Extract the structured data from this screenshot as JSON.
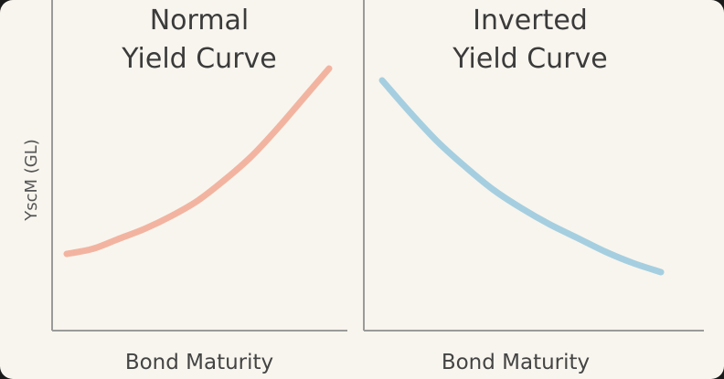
{
  "ylabel": "YscM (GL)",
  "chart_data": [
    {
      "type": "line",
      "title_line1": "Normal",
      "title_line2": "Yield Curve",
      "xlabel": "Bond Maturity",
      "ylabel": "YscM (GL)",
      "shape": "rising, convex",
      "color": "#f2b4a0",
      "grid": false,
      "series": [
        {
          "x": [
            0,
            0.1,
            0.2,
            0.3,
            0.4,
            0.5,
            0.6,
            0.7,
            0.8,
            0.9,
            1.0
          ],
          "y": [
            0.27,
            0.29,
            0.33,
            0.37,
            0.42,
            0.48,
            0.56,
            0.65,
            0.76,
            0.88,
            1.0
          ]
        }
      ]
    },
    {
      "type": "line",
      "title_line1": "Inverted",
      "title_line2": "Yield Curve",
      "xlabel": "Bond Maturity",
      "shape": "falling, concave-up",
      "color": "#a5cfe0",
      "grid": false,
      "series": [
        {
          "x": [
            0,
            0.1,
            0.2,
            0.3,
            0.4,
            0.5,
            0.6,
            0.7,
            0.8,
            0.9,
            1.0
          ],
          "y": [
            0.95,
            0.81,
            0.68,
            0.57,
            0.47,
            0.39,
            0.32,
            0.26,
            0.2,
            0.15,
            0.11
          ]
        }
      ]
    }
  ]
}
